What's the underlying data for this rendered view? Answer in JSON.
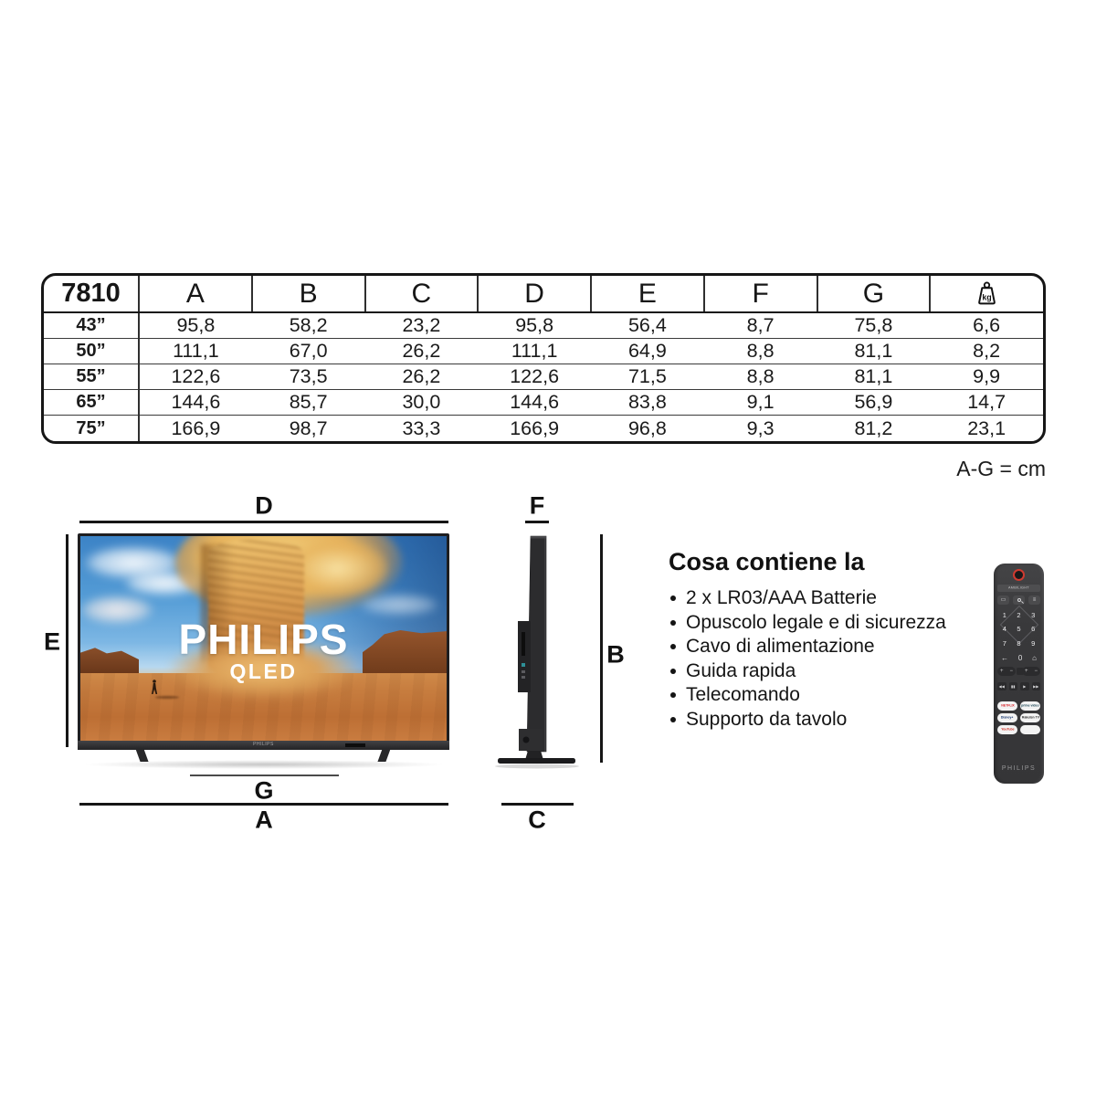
{
  "spec_table": {
    "model": "7810",
    "column_headers": [
      "A",
      "B",
      "C",
      "D",
      "E",
      "F",
      "G"
    ],
    "weight_unit": "kg",
    "rows": [
      {
        "size": "43”",
        "values": [
          "95,8",
          "58,2",
          "23,2",
          "95,8",
          "56,4",
          "8,7",
          "75,8",
          "6,6"
        ]
      },
      {
        "size": "50”",
        "values": [
          "111,1",
          "67,0",
          "26,2",
          "111,1",
          "64,9",
          "8,8",
          "81,1",
          "8,2"
        ]
      },
      {
        "size": "55”",
        "values": [
          "122,6",
          "73,5",
          "26,2",
          "122,6",
          "71,5",
          "8,8",
          "81,1",
          "9,9"
        ]
      },
      {
        "size": "65”",
        "values": [
          "144,6",
          "85,7",
          "30,0",
          "144,6",
          "83,8",
          "9,1",
          "56,9",
          "14,7"
        ]
      },
      {
        "size": "75”",
        "values": [
          "166,9",
          "98,7",
          "33,3",
          "166,9",
          "96,8",
          "9,3",
          "81,2",
          "23,1"
        ]
      }
    ],
    "unit_note": "A-G = cm"
  },
  "front_view": {
    "label_top": "D",
    "label_left": "E",
    "label_stand": "G",
    "label_bottom": "A",
    "screen_brand": "PHILIPS",
    "screen_subbrand": "QLED"
  },
  "side_view": {
    "label_top": "F",
    "label_right": "B",
    "label_bottom": "C"
  },
  "box_contents": {
    "heading": "Cosa contiene la",
    "items": [
      "2 x LR03/AAA Batterie",
      "Opuscolo legale e di sicurezza",
      "Cavo di alimentazione",
      "Guida rapida",
      "Telecomando",
      "Supporto da tavolo"
    ]
  },
  "remote": {
    "ambilight_label": "AMBILIGHT",
    "digits": [
      "1",
      "2",
      "3",
      "4",
      "5",
      "6",
      "7",
      "8",
      "9"
    ],
    "nav": {
      "back": "←",
      "zero": "0",
      "home": "⌂"
    },
    "icons": {
      "source_glyph": "▭",
      "menu_glyph": "≡",
      "volume_plus": "+",
      "volume_minus": "−"
    },
    "playback_glyphs": [
      "◀◀",
      "▮▮",
      "▶",
      "▶▶"
    ],
    "apps": [
      {
        "label": "NETFLIX",
        "text_color": "#d81f26"
      },
      {
        "label": "prime video",
        "text_color": "#1c4757"
      },
      {
        "label": "Disney+",
        "text_color": "#0d2f6b"
      },
      {
        "label": "Rakuten TV",
        "text_color": "#2a2a2a"
      },
      {
        "label": "YouTube",
        "text_color": "#d02a20"
      },
      {
        "label": "",
        "text_color": "#9a9a9a"
      }
    ],
    "brand": "PHILIPS"
  },
  "colors": {
    "power_button_red": "#cf3a30",
    "netflix_red": "#d81f26",
    "remote_body": "#3a3a3c",
    "table_border": "#161616"
  }
}
